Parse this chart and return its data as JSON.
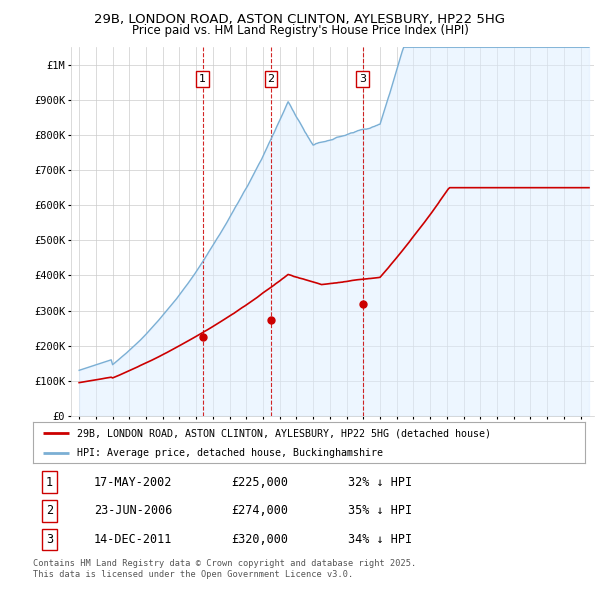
{
  "title_line1": "29B, LONDON ROAD, ASTON CLINTON, AYLESBURY, HP22 5HG",
  "title_line2": "Price paid vs. HM Land Registry's House Price Index (HPI)",
  "ylabel_ticks": [
    "£0",
    "£100K",
    "£200K",
    "£300K",
    "£400K",
    "£500K",
    "£600K",
    "£700K",
    "£800K",
    "£900K",
    "£1M"
  ],
  "ytick_values": [
    0,
    100000,
    200000,
    300000,
    400000,
    500000,
    600000,
    700000,
    800000,
    900000,
    1000000
  ],
  "xlim": [
    1994.5,
    2025.8
  ],
  "ylim": [
    0,
    1050000
  ],
  "sale_dates": [
    2002.38,
    2006.48,
    2011.96
  ],
  "sale_prices": [
    225000,
    274000,
    320000
  ],
  "sale_labels": [
    "1",
    "2",
    "3"
  ],
  "red_color": "#cc0000",
  "blue_color": "#7bafd4",
  "blue_fill": "#ddeeff",
  "vline_color": "#cc0000",
  "legend_label_red": "29B, LONDON ROAD, ASTON CLINTON, AYLESBURY, HP22 5HG (detached house)",
  "legend_label_blue": "HPI: Average price, detached house, Buckinghamshire",
  "table_data": [
    [
      "1",
      "17-MAY-2002",
      "£225,000",
      "32% ↓ HPI"
    ],
    [
      "2",
      "23-JUN-2006",
      "£274,000",
      "35% ↓ HPI"
    ],
    [
      "3",
      "14-DEC-2011",
      "£320,000",
      "34% ↓ HPI"
    ]
  ],
  "footnote": "Contains HM Land Registry data © Crown copyright and database right 2025.\nThis data is licensed under the Open Government Licence v3.0.",
  "bg_color": "#ffffff",
  "grid_color": "#cccccc"
}
